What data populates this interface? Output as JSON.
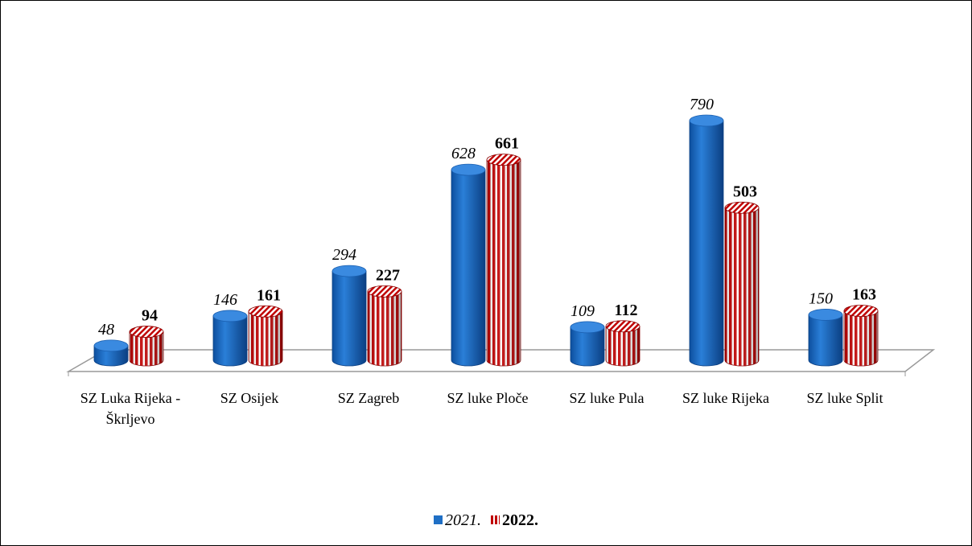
{
  "chart_data": {
    "type": "bar",
    "categories": [
      "SZ Luka Rijeka - Škrljevo",
      "SZ Osijek",
      "SZ Zagreb",
      "SZ luke Ploče",
      "SZ luke Pula",
      "SZ luke Rijeka",
      "SZ luke Split"
    ],
    "series": [
      {
        "name": "2021.",
        "color": "#1f6fc5",
        "values": [
          48,
          146,
          294,
          628,
          109,
          790,
          150
        ]
      },
      {
        "name": "2022.",
        "color": "#c00000",
        "values": [
          94,
          161,
          227,
          661,
          112,
          503,
          163
        ]
      }
    ],
    "legend": "bottom"
  }
}
